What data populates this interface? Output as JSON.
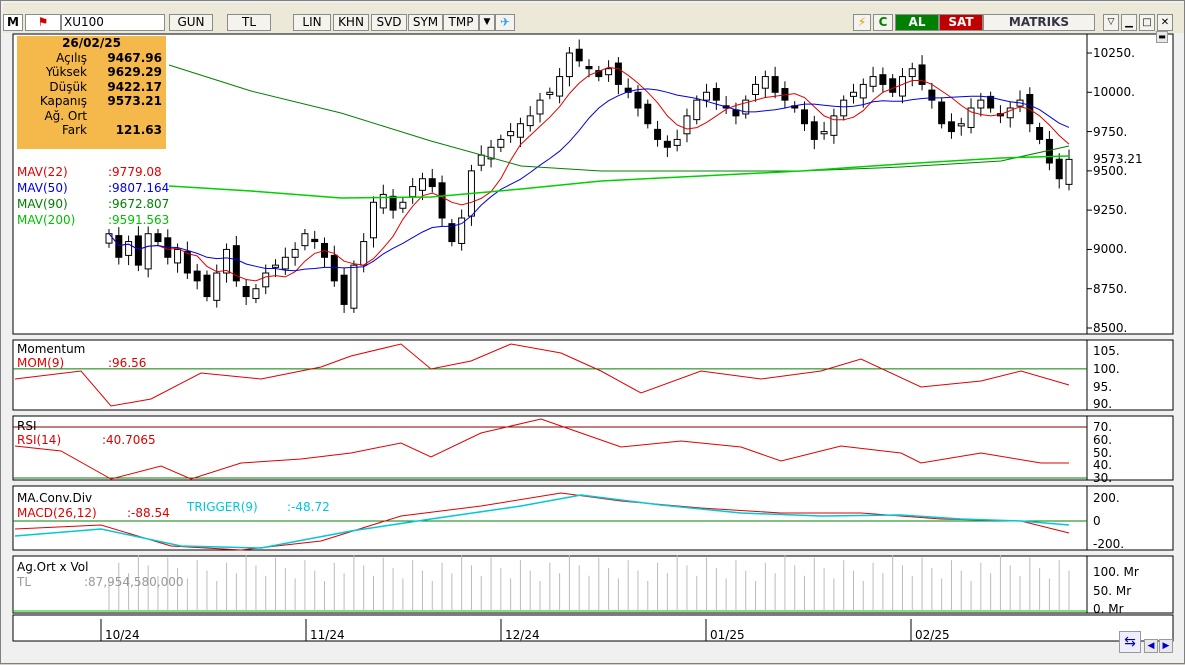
{
  "toolbar": {
    "logo": "M",
    "symbol": "XU100",
    "period": "GUN",
    "currency": "TL",
    "scale": "LIN",
    "khn": "KHN",
    "svd": "SVD",
    "sym": "SYM",
    "tmp": "TMP",
    "buy": "AL",
    "sell": "SAT",
    "brand": "MATRIKS"
  },
  "info_box": {
    "date": "26/02/25",
    "rows": [
      {
        "label": "Açılış",
        "value": "9467.96"
      },
      {
        "label": "Yüksek",
        "value": "9629.29"
      },
      {
        "label": "Düşük",
        "value": "9422.17"
      },
      {
        "label": "Kapanış",
        "value": "9573.21"
      },
      {
        "label": "Ağ. Ort",
        "value": ""
      },
      {
        "label": "Fark",
        "value": "121.63"
      }
    ]
  },
  "mav": [
    {
      "label": "MAV(22)",
      "value": ":9779.08",
      "color": "#e00000"
    },
    {
      "label": "MAV(50)",
      "value": ":9807.164",
      "color": "#0000e0"
    },
    {
      "label": "MAV(90)",
      "value": ":9672.807",
      "color": "#008000"
    },
    {
      "label": "MAV(200)",
      "value": ":9591.563",
      "color": "#00c000"
    }
  ],
  "price_axis": {
    "ticks": [
      "10250.",
      "10000.",
      "9750.",
      "9500.",
      "9250.",
      "9000.",
      "8750.",
      "8500."
    ],
    "last": "9573.21"
  },
  "momentum": {
    "title": "Momentum",
    "label": "MOM(9)",
    "value": ":96.56",
    "ticks": [
      "105.",
      "100.",
      "95.",
      "90."
    ]
  },
  "rsi": {
    "title": "RSI",
    "label": "RSI(14)",
    "value": ":40.7065",
    "ticks": [
      "70.",
      "60.",
      "50.",
      "40.",
      "30."
    ]
  },
  "macd": {
    "title": "MA.Conv.Div",
    "label": "MACD(26,12)",
    "value": ":-88.54",
    "trigger_label": "TRIGGER(9)",
    "trigger_value": ":-48.72",
    "ticks": [
      "200.",
      "0",
      "-200."
    ]
  },
  "volume": {
    "title": "Ag.Ort x Vol",
    "currency": "TL",
    "value": ":87,954,580,000",
    "ticks": [
      "100. Mr",
      "50. Mr",
      "0. Mr"
    ]
  },
  "dates": [
    "10/24",
    "11/24",
    "12/24",
    "01/25",
    "02/25"
  ],
  "chart_data": {
    "type": "candlestick",
    "x_labels": [
      "10/24",
      "11/24",
      "12/24",
      "01/25",
      "02/25"
    ],
    "ylim": [
      8500,
      10300
    ],
    "close": [
      9100,
      8950,
      9050,
      8900,
      9100,
      9050,
      8950,
      9000,
      8850,
      8800,
      8700,
      8850,
      9000,
      8800,
      8700,
      8750,
      8850,
      8900,
      8950,
      9000,
      9100,
      9050,
      8950,
      8800,
      8650,
      8900,
      9050,
      9300,
      9350,
      9250,
      9300,
      9400,
      9450,
      9400,
      9200,
      9050,
      9200,
      9500,
      9600,
      9650,
      9700,
      9750,
      9800,
      9850,
      9950,
      10000,
      10100,
      10250,
      10200,
      10150,
      10100,
      10150,
      10050,
      10000,
      9900,
      9800,
      9700,
      9650,
      9700,
      9850,
      9950,
      10000,
      9950,
      9900,
      9850,
      9950,
      10050,
      10100,
      10000,
      9950,
      9900,
      9800,
      9700,
      9750,
      9850,
      9950,
      10000,
      10050,
      10100,
      10050,
      10000,
      10100,
      10150,
      10050,
      9950,
      9800,
      9750,
      9800,
      9900,
      9950,
      9900,
      9850,
      9900,
      9950,
      9800,
      9700,
      9550,
      9450,
      9573
    ]
  }
}
